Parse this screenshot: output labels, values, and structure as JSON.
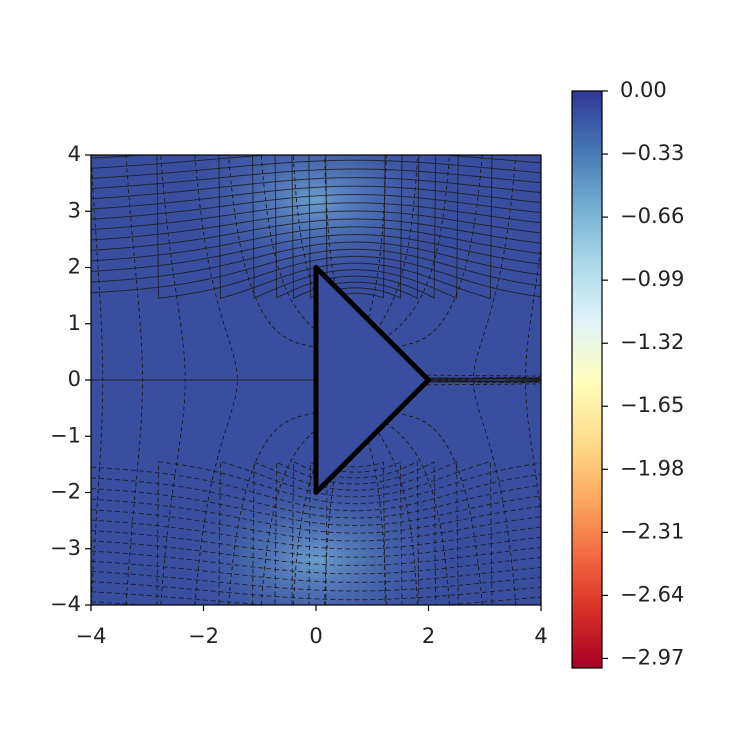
{
  "chart_data": {
    "type": "contour",
    "xlim": [
      -4,
      4
    ],
    "ylim": [
      -4,
      4
    ],
    "xticks": [
      {
        "value": -4,
        "label": "−4"
      },
      {
        "value": -2,
        "label": "−2"
      },
      0,
      2,
      4
    ],
    "yticks": [
      {
        "value": -4,
        "label": "−4"
      },
      {
        "value": -3,
        "label": "−3"
      },
      {
        "value": -2,
        "label": "−2"
      },
      {
        "value": -1,
        "label": "−1"
      },
      0,
      1,
      2,
      3,
      4
    ],
    "polygon": {
      "x": [
        0,
        2,
        0
      ],
      "y": [
        2,
        0,
        -2
      ],
      "color": "#000000"
    },
    "colorbar": {
      "lim": [
        -3.02,
        0
      ],
      "ticks": [
        {
          "value": 0,
          "label": "0.00"
        },
        {
          "value": -0.33,
          "label": "−0.33"
        },
        {
          "value": -0.66,
          "label": "−0.66"
        },
        {
          "value": -0.99,
          "label": "−0.99"
        },
        {
          "value": -1.32,
          "label": "−1.32"
        },
        {
          "value": -1.65,
          "label": "−1.65"
        },
        {
          "value": -1.98,
          "label": "−1.98"
        },
        {
          "value": -2.31,
          "label": "−2.31"
        },
        {
          "value": -2.64,
          "label": "−2.64"
        },
        {
          "value": -2.97,
          "label": "−2.97"
        }
      ],
      "colormap": [
        "#a50026",
        "#d73027",
        "#f46d43",
        "#fdae61",
        "#fee090",
        "#ffffbf",
        "#e0f3f8",
        "#abd9e9",
        "#74add1",
        "#4575b4",
        "#313695"
      ]
    }
  }
}
